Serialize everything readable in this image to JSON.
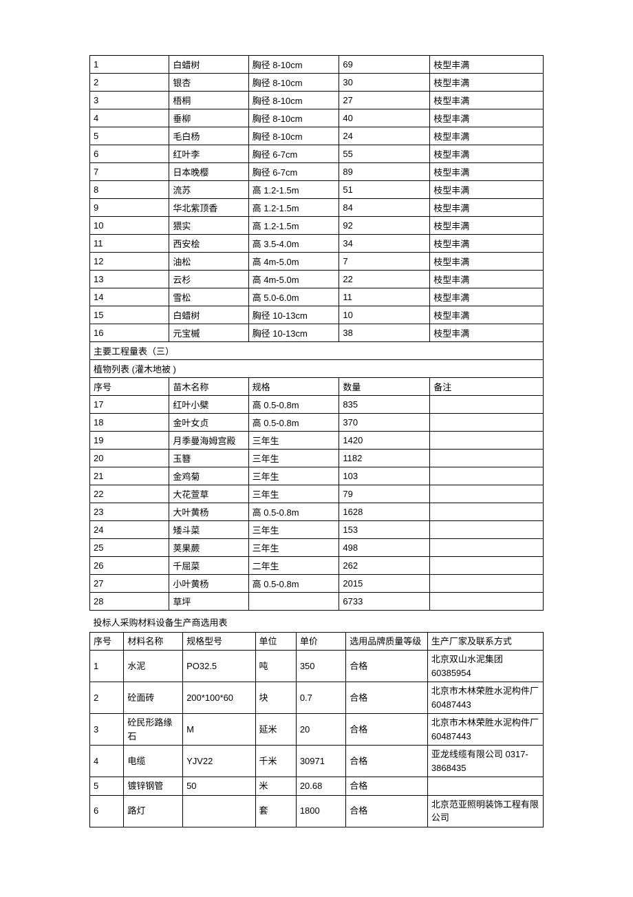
{
  "table1": {
    "rows_trees": [
      [
        "1",
        "白蜡树",
        "胸径 8-10cm",
        "69",
        "枝型丰满"
      ],
      [
        "2",
        "银杏",
        "胸径 8-10cm",
        "30",
        "枝型丰满"
      ],
      [
        "3",
        "梧桐",
        "胸径 8-10cm",
        "27",
        "枝型丰满"
      ],
      [
        "4",
        "垂柳",
        "胸径 8-10cm",
        "40",
        "枝型丰满"
      ],
      [
        "5",
        "毛白杨",
        "胸径 8-10cm",
        "24",
        "枝型丰满"
      ],
      [
        "6",
        "红叶李",
        "胸径 6-7cm",
        "55",
        "枝型丰满"
      ],
      [
        "7",
        "日本晚樱",
        "胸径 6-7cm",
        "89",
        "枝型丰满"
      ],
      [
        "8",
        "流苏",
        "高 1.2-1.5m",
        "51",
        "枝型丰满"
      ],
      [
        "9",
        "华北紫顶香",
        "高 1.2-1.5m",
        "84",
        "枝型丰满"
      ],
      [
        "10",
        "猥实",
        "高 1.2-1.5m",
        "92",
        "枝型丰满"
      ],
      [
        "11",
        "西安桧",
        "高 3.5-4.0m",
        "34",
        "枝型丰满"
      ],
      [
        "12",
        "油松",
        "高 4m-5.0m",
        "7",
        "枝型丰满"
      ],
      [
        "13",
        "云杉",
        "高 4m-5.0m",
        "22",
        "枝型丰满"
      ],
      [
        "14",
        "雪松",
        "高 5.0-6.0m",
        "11",
        "枝型丰满"
      ],
      [
        "15",
        "白蜡树",
        "胸径 10-13cm",
        "10",
        "枝型丰满"
      ],
      [
        "16",
        "元宝槭",
        "胸径 10-13cm",
        "38",
        "枝型丰满"
      ]
    ],
    "section_title": "主要工程量表（三）",
    "subsection_title": "植物列表 (灌木地被 )",
    "headers2": [
      "序号",
      "苗木名称",
      "规格",
      "数量",
      "备注"
    ],
    "rows_shrubs": [
      [
        "17",
        "红叶小檗",
        "高 0.5-0.8m",
        "835",
        ""
      ],
      [
        "18",
        "金叶女贞",
        "高 0.5-0.8m",
        "370",
        ""
      ],
      [
        "19",
        "月季曼海姆宫殿",
        "三年生",
        "1420",
        ""
      ],
      [
        "20",
        "玉簪",
        "三年生",
        "1182",
        ""
      ],
      [
        "21",
        "金鸡菊",
        "三年生",
        "103",
        ""
      ],
      [
        "22",
        "大花萱草",
        "三年生",
        "79",
        ""
      ],
      [
        "23",
        "大叶黄杨",
        "高 0.5-0.8m",
        "1628",
        ""
      ],
      [
        "24",
        "矮斗菜",
        "三年生",
        "153",
        ""
      ],
      [
        "25",
        "荚果蕨",
        "三年生",
        "498",
        ""
      ],
      [
        "26",
        "千屈菜",
        "二年生",
        "262",
        ""
      ],
      [
        "27",
        "小叶黄杨",
        "高 0.5-0.8m",
        "2015",
        ""
      ],
      [
        "28",
        "草坪",
        "",
        "6733",
        ""
      ]
    ]
  },
  "table2": {
    "caption": "投标人采购材料设备生产商选用表",
    "headers": [
      "序号",
      "材料名称",
      "规格型号",
      "单位",
      "单价",
      "选用品牌质量等级",
      "生产厂家及联系方式"
    ],
    "rows": [
      [
        "1",
        "水泥",
        "PO32.5",
        "吨",
        "350",
        "合格",
        "北京双山水泥集团 60385954"
      ],
      [
        "2",
        "砼面砖",
        "200*100*60",
        "块",
        "0.7",
        "合格",
        "北京市木林荣胜水泥构件厂 60487443"
      ],
      [
        "3",
        "砼民形路缘石",
        "M",
        "延米",
        "20",
        "合格",
        "北京市木林荣胜水泥构件厂 60487443"
      ],
      [
        "4",
        "电缆",
        "YJV22",
        "千米",
        "30971",
        "合格",
        "亚龙线缆有限公司 0317-3868435"
      ],
      [
        "5",
        "镀锌钢管",
        "50",
        "米",
        "20.68",
        "合格",
        ""
      ],
      [
        "6",
        "路灯",
        "",
        "套",
        "1800",
        "合格",
        "北京范亚照明装饰工程有限公司"
      ]
    ]
  }
}
